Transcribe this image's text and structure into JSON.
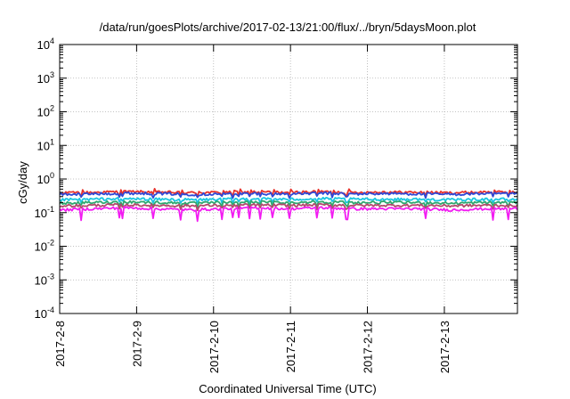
{
  "chart_data": {
    "type": "line",
    "title": "/data/run/goesPlots/archive/2017-02-13/21:00/flux/../bryn/5daysMoon.plot",
    "xlabel": "Coordinated Universal Time (UTC)",
    "ylabel": "cGy/day",
    "yscale": "log",
    "ylim": [
      0.0001,
      10000
    ],
    "xlim": [
      0,
      5.95
    ],
    "grid": true,
    "legend": "none",
    "x_ticks": [
      "2017-2-8",
      "2017-2-9",
      "2017-2-10",
      "2017-2-11",
      "2017-2-12",
      "2017-2-13"
    ],
    "y_ticks": [
      {
        "base": "10",
        "exp": "-4"
      },
      {
        "base": "10",
        "exp": "-3"
      },
      {
        "base": "10",
        "exp": "-2"
      },
      {
        "base": "10",
        "exp": "-1"
      },
      {
        "base": "10",
        "exp": "0"
      },
      {
        "base": "10",
        "exp": "1"
      },
      {
        "base": "10",
        "exp": "2"
      },
      {
        "base": "10",
        "exp": "3"
      },
      {
        "base": "10",
        "exp": "4"
      }
    ],
    "series": [
      {
        "color": "#e8312b",
        "base": 0.4,
        "values": [
          0.38,
          0.4,
          0.42,
          0.41,
          0.39,
          0.4,
          0.41,
          0.4,
          0.42,
          0.4,
          0.41,
          0.4,
          0.39,
          0.41,
          0.4
        ]
      },
      {
        "color": "#2f49d6",
        "base": 0.36,
        "values": [
          0.35,
          0.36,
          0.38,
          0.37,
          0.35,
          0.36,
          0.37,
          0.36,
          0.38,
          0.36,
          0.37,
          0.36,
          0.35,
          0.37,
          0.36
        ]
      },
      {
        "color": "#19c6e0",
        "base": 0.25,
        "values": [
          0.24,
          0.25,
          0.26,
          0.25,
          0.24,
          0.25,
          0.26,
          0.25,
          0.26,
          0.25,
          0.25,
          0.25,
          0.24,
          0.25,
          0.25
        ]
      },
      {
        "color": "#2ea86f",
        "base": 0.2,
        "values": [
          0.19,
          0.2,
          0.21,
          0.2,
          0.19,
          0.2,
          0.21,
          0.2,
          0.21,
          0.2,
          0.2,
          0.2,
          0.19,
          0.2,
          0.2
        ]
      },
      {
        "color": "#b24a6c",
        "base": 0.165,
        "values": [
          0.16,
          0.165,
          0.17,
          0.165,
          0.16,
          0.165,
          0.17,
          0.165,
          0.17,
          0.165,
          0.165,
          0.165,
          0.16,
          0.165,
          0.165
        ]
      },
      {
        "color": "#f21cf2",
        "base": 0.13,
        "values": [
          0.12,
          0.13,
          0.14,
          0.13,
          0.12,
          0.13,
          0.14,
          0.13,
          0.14,
          0.13,
          0.13,
          0.13,
          0.12,
          0.13,
          0.13
        ]
      }
    ]
  }
}
